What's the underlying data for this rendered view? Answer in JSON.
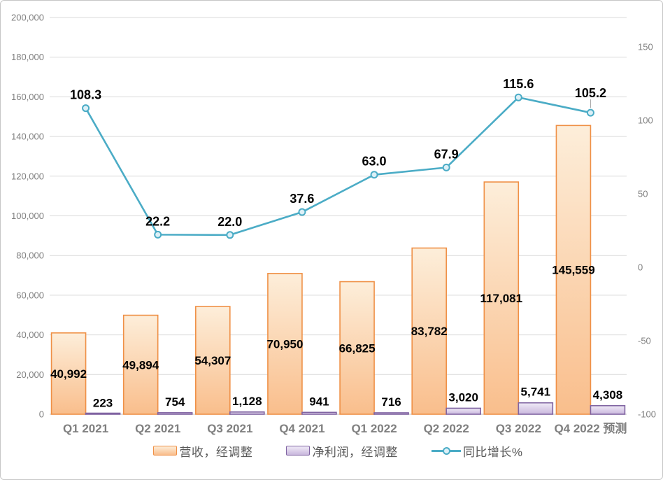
{
  "chart_data": {
    "type": "combo",
    "categories": [
      "Q1 2021",
      "Q2 2021",
      "Q3 2021",
      "Q4 2021",
      "Q1 2022",
      "Q2 2022",
      "Q3 2022",
      "Q4 2022 预测"
    ],
    "series": [
      {
        "name": "营收，经调整",
        "type": "bar",
        "axis": "left",
        "values": [
          40992,
          49894,
          54307,
          70950,
          66825,
          83782,
          117081,
          145559
        ],
        "labels": [
          "40,992",
          "49,894",
          "54,307",
          "70,950",
          "66,825",
          "83,782",
          "117,081",
          "145,559"
        ],
        "border_color": "#ef9046",
        "fill_top": "#fdeeda",
        "fill_bottom": "#f9be8c"
      },
      {
        "name": "净利润，经调整",
        "type": "bar",
        "axis": "left",
        "values": [
          223,
          754,
          1128,
          941,
          716,
          3020,
          5741,
          4308
        ],
        "labels": [
          "223",
          "754",
          "1,128",
          "941",
          "716",
          "3,020",
          "5,741",
          "4,308"
        ],
        "border_color": "#8064a2",
        "fill_top": "#f0ebf7",
        "fill_bottom": "#c9b7dd"
      },
      {
        "name": "同比增长%",
        "type": "line",
        "axis": "right",
        "values": [
          108.3,
          22.2,
          22.0,
          37.6,
          63.0,
          67.9,
          115.6,
          105.2
        ],
        "labels": [
          "108.3",
          "22.2",
          "22.0",
          "37.6",
          "63.0",
          "67.9",
          "115.6",
          "105.2"
        ],
        "line_color": "#4bacc6",
        "marker_fill": "#ddf0f7"
      }
    ],
    "left_axis": {
      "min": 0,
      "max": 200000,
      "step": 20000,
      "tick_labels": [
        "0",
        "20,000",
        "40,000",
        "60,000",
        "80,000",
        "100,000",
        "120,000",
        "140,000",
        "160,000",
        "180,000",
        "200,000"
      ]
    },
    "right_axis": {
      "min": -100,
      "max": 170,
      "tick_values": [
        150,
        100,
        50,
        0,
        -50,
        -100
      ],
      "tick_labels": [
        "150",
        "100",
        "50",
        "0",
        "-50",
        "-100"
      ]
    },
    "grid": {
      "show": true,
      "gridline_color": "#d9d9d9",
      "axis_line_color": "#bfbfbf"
    },
    "legend_position": "bottom",
    "text_colors": {
      "axis_tick": "#808080",
      "category": "#7f7f7f",
      "data_label": "#000000"
    }
  },
  "legend": {
    "items": [
      {
        "label": "营收，经调整",
        "swatch": "revenue-bar-swatch"
      },
      {
        "label": "净利润，经调整",
        "swatch": "profit-bar-swatch"
      },
      {
        "label": "同比增长%",
        "swatch": "growth-line-swatch"
      }
    ]
  }
}
